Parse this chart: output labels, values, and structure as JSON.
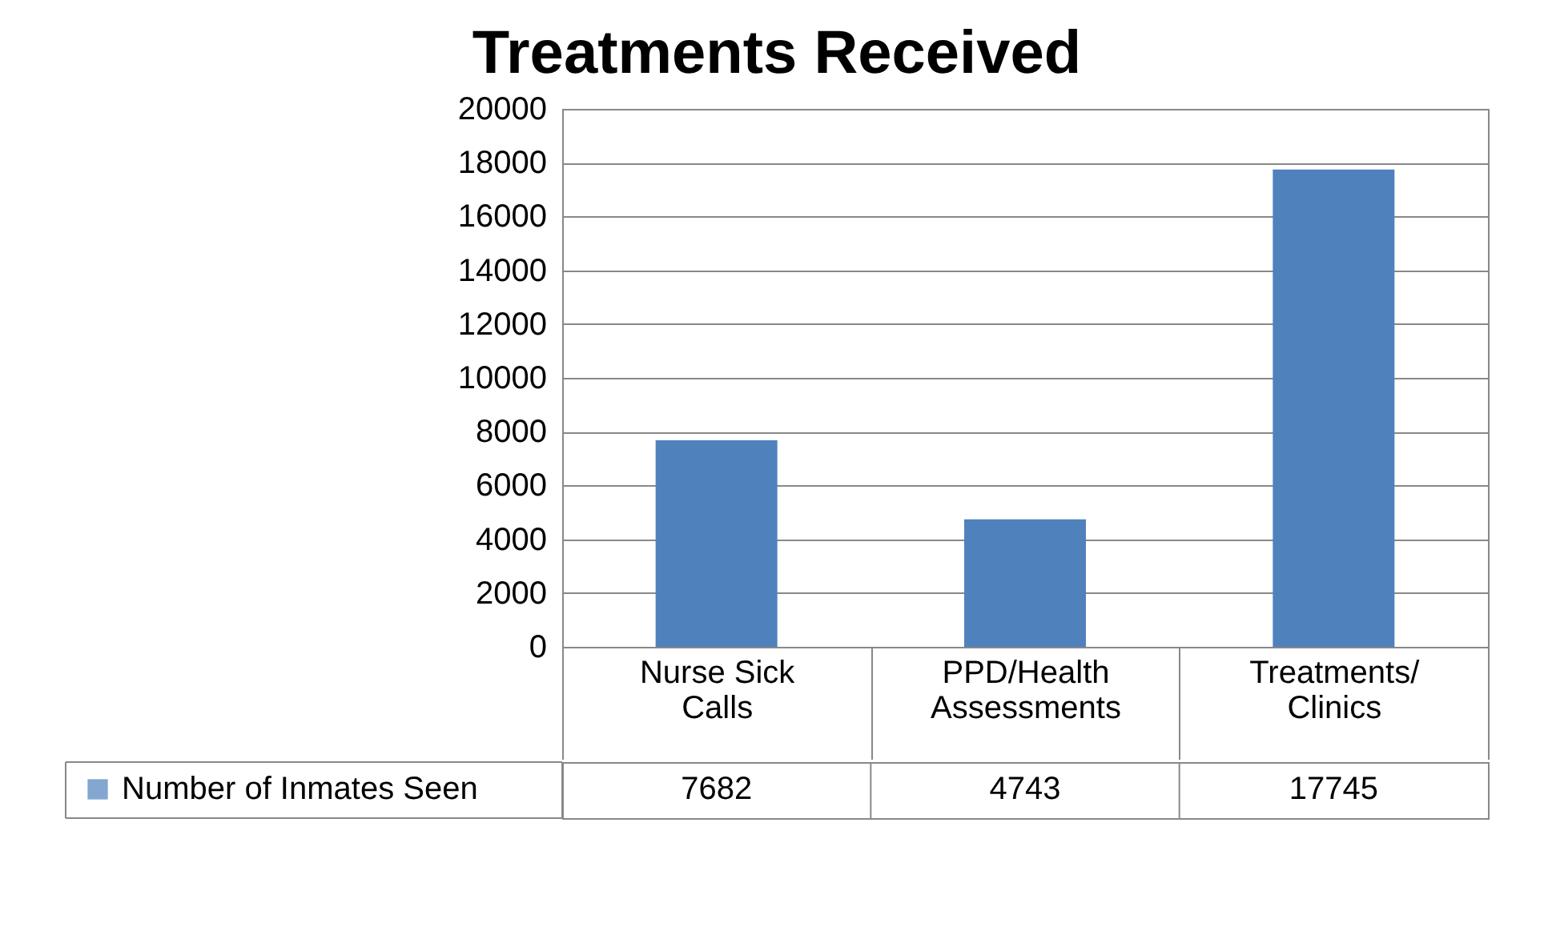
{
  "chart_data": {
    "type": "bar",
    "title": "Treatments Received",
    "categories": [
      "Nurse Sick Calls",
      "PPD/Health Assessments",
      "Treatments/Clinics"
    ],
    "series": [
      {
        "name": "Number of Inmates Seen",
        "color": "#4f81bd",
        "values": [
          7682,
          4743,
          17745
        ]
      }
    ],
    "ylim": [
      0,
      20000
    ],
    "yticks": [
      0,
      2000,
      4000,
      6000,
      8000,
      10000,
      12000,
      14000,
      16000,
      18000,
      20000
    ],
    "grid": "y",
    "legend": "bottom",
    "data_labels": true
  }
}
